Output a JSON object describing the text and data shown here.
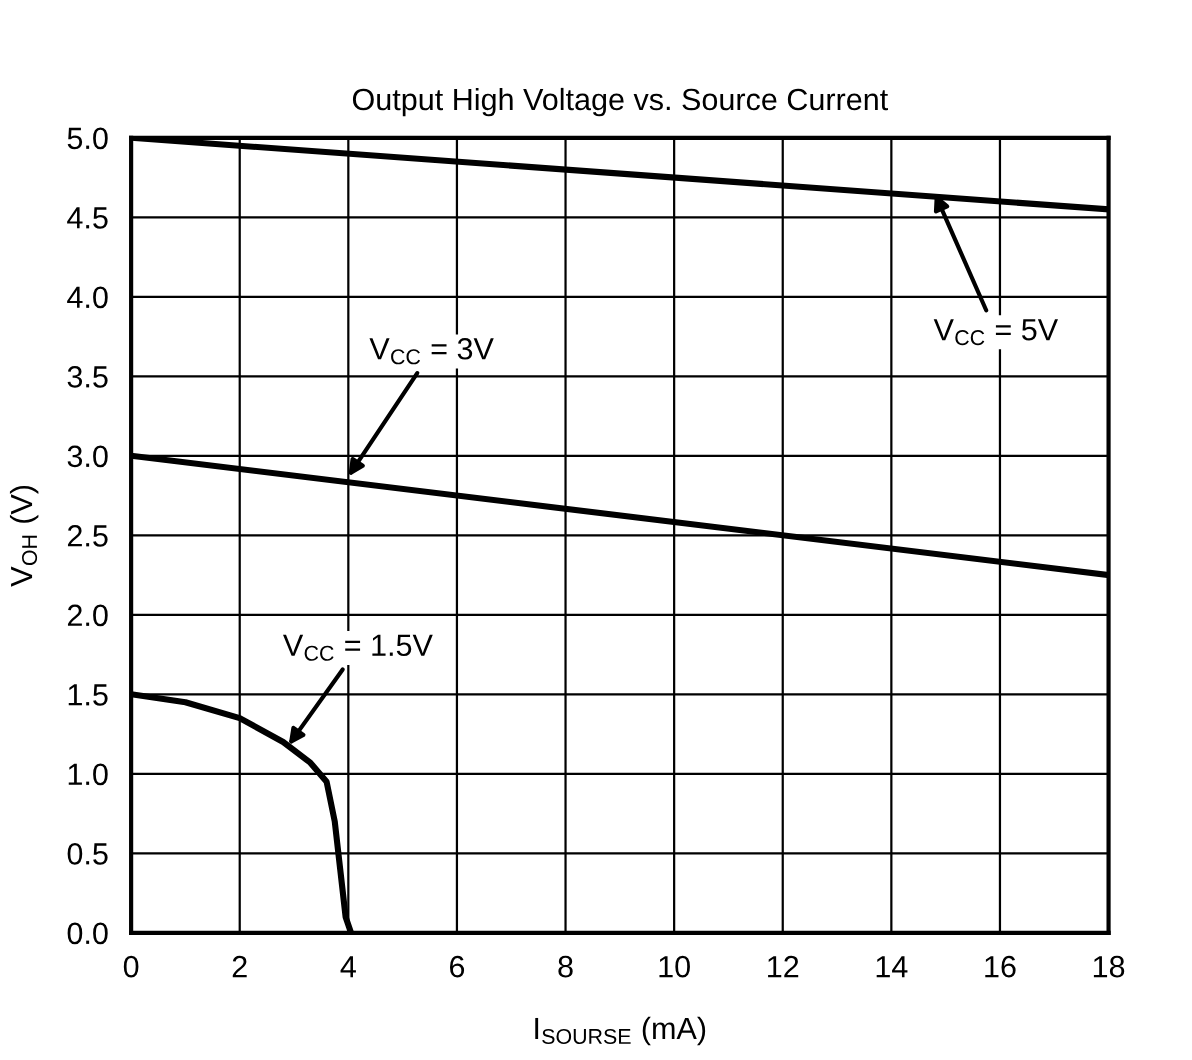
{
  "chart_data": {
    "type": "line",
    "title": "Output High Voltage vs. Source Current",
    "xlabel": "I$_{SOURSE}$ (mA)",
    "ylabel": "V$_{OH}$ (V)",
    "series": [
      {
        "color": "#000000",
        "x": [
          0,
          18
        ],
        "values": [
          5.0,
          4.55
        ]
      },
      {
        "color": "#000000",
        "x": [
          0,
          18
        ],
        "values": [
          3.0,
          2.25
        ]
      },
      {
        "color": "#000000",
        "x": [
          0,
          1,
          2,
          2.8,
          3.3,
          3.6,
          3.75,
          3.85,
          3.95,
          4.05
        ],
        "values": [
          1.5,
          1.45,
          1.35,
          1.2,
          1.07,
          0.95,
          0.7,
          0.4,
          0.1,
          0.0
        ]
      }
    ],
    "annotations": [
      {
        "text": "V$_{CC}$ = 5V",
        "x": 14.8,
        "y": 4.65
      },
      {
        "text": "V$_{CC}$ = 3V",
        "x": 4.0,
        "y": 2.87
      },
      {
        "text": "V$_{CC}$ = 1.5V",
        "x": 2.9,
        "y": 1.18
      }
    ],
    "xlim": [
      0,
      18
    ],
    "xticks": [
      0,
      2,
      4,
      6,
      8,
      10,
      12,
      14,
      16,
      18
    ],
    "ylim": [
      0,
      5.0
    ],
    "yticks": [
      {
        "value": 0,
        "label": "0.0"
      },
      0.5,
      {
        "value": 1,
        "label": "1.0"
      },
      1.5,
      {
        "value": 2,
        "label": "2.0"
      },
      2.5,
      {
        "value": 3,
        "label": "3.0"
      },
      3.5,
      {
        "value": 4,
        "label": "4.0"
      },
      4.5,
      {
        "value": 5,
        "label": "5.0"
      }
    ],
    "grid": true,
    "legend": false
  }
}
